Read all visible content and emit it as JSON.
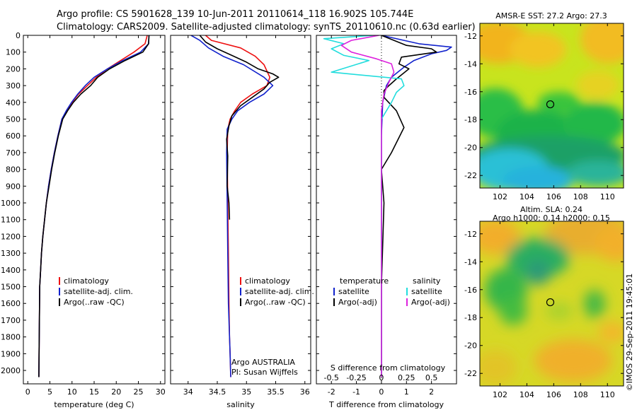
{
  "header": {
    "line1": "Argo profile: CS 5901628_139 10-Jun-2011 20110614_118 16.902S 105.744E",
    "line2": "Climatology: CARS2009. Satellite-adjusted climatology: synTS_20110610.nc (0.63d earlier)"
  },
  "credit": "©IMOS 29-Sep-2011 19:45:01",
  "colors": {
    "climatology": "#ee1111",
    "satellite": "#1122cc",
    "argo": "#000000",
    "cyan": "#22dddd",
    "magenta": "#dd22dd"
  },
  "chart_data": [
    {
      "id": "temperature",
      "type": "line",
      "xlabel": "temperature (deg C)",
      "ylabel": "",
      "xlim": [
        -1,
        31
      ],
      "ylim": [
        2080,
        0
      ],
      "xticks": [
        0,
        5,
        10,
        15,
        20,
        25,
        30
      ],
      "yticks": [
        0,
        100,
        200,
        300,
        400,
        500,
        600,
        700,
        800,
        900,
        1000,
        1100,
        1200,
        1300,
        1400,
        1500,
        1600,
        1700,
        1800,
        1900,
        2000
      ],
      "legend": {
        "placement": "lower-middle",
        "entries": [
          "climatology",
          "satellite-adj. clim.",
          "Argo(..raw -QC)"
        ]
      },
      "series": [
        {
          "name": "climatology",
          "color": "#ee1111",
          "x": [
            27.0,
            26.5,
            24.0,
            21.0,
            18.0,
            15.5,
            13.5,
            11.5,
            10.0,
            8.8,
            7.7,
            6.8,
            6.0,
            5.3,
            4.7,
            4.2,
            3.8,
            3.4,
            3.1,
            2.9,
            2.7,
            2.5
          ],
          "y": [
            0,
            50,
            100,
            150,
            200,
            250,
            300,
            350,
            400,
            450,
            500,
            600,
            700,
            800,
            900,
            1000,
            1100,
            1200,
            1300,
            1400,
            1500,
            2040
          ]
        },
        {
          "name": "satellite-adj. clim.",
          "color": "#1122cc",
          "x": [
            27.4,
            27.3,
            25.5,
            21.5,
            18.0,
            15.0,
            13.0,
            11.3,
            9.9,
            8.7,
            7.7,
            6.8,
            6.0,
            5.3,
            4.7,
            4.2,
            3.8,
            3.4,
            3.1,
            2.9,
            2.7,
            2.5
          ],
          "y": [
            0,
            50,
            100,
            150,
            200,
            250,
            300,
            350,
            400,
            450,
            500,
            600,
            700,
            800,
            900,
            1000,
            1100,
            1200,
            1300,
            1400,
            1500,
            2040
          ]
        },
        {
          "name": "Argo(..raw -QC)",
          "color": "#000000",
          "x": [
            27.4,
            27.3,
            26.0,
            22.0,
            18.5,
            15.8,
            14.2,
            12.0,
            10.3,
            9.0,
            7.9,
            6.9,
            6.1,
            5.4,
            4.8,
            4.2,
            3.8,
            3.4,
            3.1,
            2.9,
            2.7,
            2.5
          ],
          "y": [
            0,
            50,
            100,
            150,
            200,
            250,
            300,
            350,
            400,
            450,
            500,
            600,
            700,
            800,
            900,
            1000,
            1100,
            1200,
            1300,
            1400,
            1500,
            2040
          ]
        }
      ]
    },
    {
      "id": "salinity",
      "type": "line",
      "xlabel": "salinity",
      "ylabel": "",
      "xlim": [
        33.7,
        36.1
      ],
      "ylim": [
        2080,
        0
      ],
      "xticks": [
        34,
        34.5,
        35,
        35.5,
        36
      ],
      "legend": {
        "placement": "lower-middle",
        "entries": [
          "climatology",
          "satellite-adj. clim.",
          "Argo(..raw -QC)"
        ]
      },
      "annotations": [
        "Argo AUSTRALIA",
        "PI: Susan Wijffels"
      ],
      "series": [
        {
          "name": "climatology",
          "color": "#ee1111",
          "x": [
            34.3,
            34.4,
            34.9,
            35.15,
            35.3,
            35.4,
            35.35,
            35.1,
            34.9,
            34.8,
            34.72,
            34.68,
            34.67,
            34.68,
            34.69,
            34.7,
            34.71,
            34.72,
            34.73
          ],
          "y": [
            0,
            30,
            75,
            125,
            175,
            250,
            300,
            350,
            400,
            450,
            500,
            560,
            700,
            1000,
            1300,
            1600,
            1800,
            1900,
            2040
          ]
        },
        {
          "name": "satellite-adj. clim.",
          "color": "#1122cc",
          "x": [
            34.05,
            34.2,
            34.35,
            34.6,
            34.95,
            35.3,
            35.45,
            35.3,
            35.05,
            34.85,
            34.75,
            34.67,
            34.66,
            34.67,
            34.68,
            34.69,
            34.71,
            34.72,
            34.73
          ],
          "y": [
            0,
            30,
            75,
            125,
            175,
            250,
            300,
            350,
            400,
            450,
            500,
            560,
            700,
            1000,
            1300,
            1600,
            1800,
            1900,
            2040
          ]
        },
        {
          "name": "Argo(..raw -QC)",
          "color": "#000000",
          "x": [
            34.2,
            34.3,
            34.5,
            34.75,
            35.0,
            35.2,
            35.45,
            35.55,
            35.4,
            35.3,
            35.1,
            34.9,
            34.75,
            34.7,
            34.66,
            34.68,
            34.67,
            34.7,
            34.71
          ],
          "y": [
            0,
            40,
            80,
            120,
            160,
            200,
            230,
            250,
            280,
            320,
            370,
            420,
            480,
            540,
            620,
            720,
            900,
            1000,
            1100
          ]
        }
      ]
    },
    {
      "id": "difference",
      "type": "line",
      "xlabel": "T difference from climatology",
      "secondary_xlabel": "S difference from climatology",
      "xlim": [
        -2.6,
        3.0
      ],
      "ylim": [
        2080,
        0
      ],
      "xticks": [
        -2,
        -1,
        0,
        1,
        2
      ],
      "secondary_xticks": [
        "-0.5",
        "-0.25",
        "0",
        "0.25",
        "0.5"
      ],
      "secondary_xtick_positions": [
        -2,
        -1,
        0,
        1,
        2
      ],
      "legend": {
        "placement": "lower-middle",
        "groups": [
          {
            "title": "temperature",
            "entries": [
              "satellite",
              "Argo(-adj)"
            ]
          },
          {
            "title": "salinity",
            "entries": [
              "satellite",
              "Argo(-adj)"
            ]
          }
        ]
      },
      "series": [
        {
          "name": "temperature satellite",
          "color": "#1122cc",
          "x": [
            0,
            1.5,
            2.8,
            2.6,
            2.0,
            1.3,
            0.9,
            0.4,
            0.2,
            0.05,
            0,
            0,
            0,
            0
          ],
          "y": [
            0,
            50,
            70,
            90,
            110,
            150,
            190,
            250,
            300,
            400,
            600,
            1000,
            1500,
            2040
          ]
        },
        {
          "name": "temperature Argo(-adj)",
          "color": "#000000",
          "x": [
            0,
            1.0,
            2.0,
            2.2,
            0.8,
            0.7,
            1.1,
            0.6,
            0.3,
            0.1,
            0.1,
            0.6,
            0.9,
            0.4,
            0.0,
            0.1,
            0.0,
            0.0
          ],
          "y": [
            0,
            60,
            80,
            100,
            130,
            170,
            200,
            260,
            300,
            330,
            370,
            450,
            550,
            700,
            800,
            1000,
            1500,
            2040
          ]
        },
        {
          "name": "salinity satellite",
          "color": "#22dddd",
          "x": [
            -0.3,
            -2.3,
            -1.5,
            -2.0,
            -1.5,
            -0.5,
            -2.0,
            0.8,
            0.9,
            0.6,
            0.4,
            0.0,
            0.0,
            0.0,
            0.0
          ],
          "y": [
            0,
            20,
            50,
            80,
            120,
            150,
            220,
            260,
            300,
            340,
            400,
            500,
            600,
            1000,
            2040
          ]
        },
        {
          "name": "salinity Argo(-adj)",
          "color": "#dd22dd",
          "x": [
            -0.1,
            -1.2,
            -1.6,
            -1.2,
            -0.2,
            0.4,
            0.5,
            0.3,
            0.1,
            0.0,
            0.0,
            0.0,
            0.0
          ],
          "y": [
            0,
            30,
            60,
            100,
            140,
            170,
            220,
            280,
            350,
            450,
            600,
            1000,
            2040
          ]
        }
      ]
    },
    {
      "id": "sst-map",
      "type": "heatmap",
      "title": "AMSR-E SST: 27.2 Argo: 27.3",
      "xlim": [
        100.5,
        111.2
      ],
      "ylim": [
        -22.9,
        -11.1
      ],
      "xticks": [
        102,
        104,
        106,
        108,
        110
      ],
      "yticks": [
        -12,
        -14,
        -16,
        -18,
        -20,
        -22
      ],
      "marker": {
        "x": 105.744,
        "y": -16.902
      }
    },
    {
      "id": "sla-map",
      "type": "heatmap",
      "title": "Altim. SLA: 0.24",
      "subtitle": "Argo h1000: 0.14 h2000: 0.15",
      "xlim": [
        100.5,
        111.2
      ],
      "ylim": [
        -22.9,
        -11.1
      ],
      "xticks": [
        102,
        104,
        106,
        108,
        110
      ],
      "yticks": [
        -12,
        -14,
        -16,
        -18,
        -20,
        -22
      ],
      "marker": {
        "x": 105.744,
        "y": -16.902
      }
    }
  ]
}
